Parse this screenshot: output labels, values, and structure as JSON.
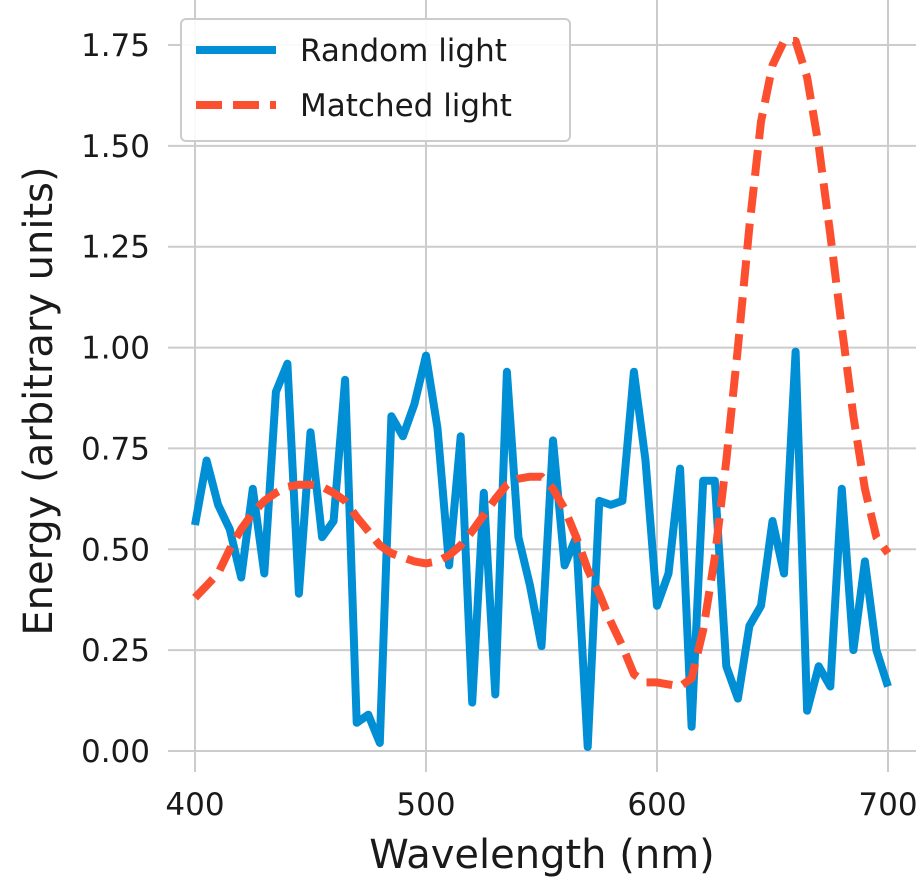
{
  "chart_data": {
    "type": "line",
    "title": "",
    "xlabel": "Wavelength (nm)",
    "ylabel": "Energy (arbitrary units)",
    "xlim": [
      400,
      700
    ],
    "ylim": [
      0,
      1.75
    ],
    "x_ticks": [
      400,
      500,
      600,
      700
    ],
    "y_ticks": [
      0,
      0.25,
      0.5,
      0.75,
      1.0,
      1.25,
      1.5,
      1.75
    ],
    "x_tick_labels": [
      "400",
      "500",
      "600",
      "700"
    ],
    "y_tick_labels": [
      "0.00",
      "0.25",
      "0.50",
      "0.75",
      "1.00",
      "1.25",
      "1.50",
      "1.75"
    ],
    "grid": true,
    "legend_position": "top-left",
    "series": [
      {
        "name": "Random light",
        "color": "#008fd5",
        "style": "solid",
        "x": [
          400,
          405,
          410,
          415,
          420,
          425,
          430,
          435,
          440,
          445,
          450,
          455,
          460,
          465,
          470,
          475,
          480,
          485,
          490,
          495,
          500,
          505,
          510,
          515,
          520,
          525,
          530,
          535,
          540,
          545,
          550,
          555,
          560,
          565,
          570,
          575,
          580,
          585,
          590,
          595,
          600,
          605,
          610,
          615,
          620,
          625,
          630,
          635,
          640,
          645,
          650,
          655,
          660,
          665,
          670,
          675,
          680,
          685,
          690,
          695,
          700
        ],
        "y": [
          0.56,
          0.72,
          0.61,
          0.55,
          0.43,
          0.65,
          0.44,
          0.89,
          0.96,
          0.39,
          0.79,
          0.53,
          0.57,
          0.92,
          0.07,
          0.09,
          0.02,
          0.83,
          0.78,
          0.86,
          0.98,
          0.8,
          0.46,
          0.78,
          0.12,
          0.64,
          0.14,
          0.94,
          0.53,
          0.41,
          0.26,
          0.77,
          0.46,
          0.53,
          0.01,
          0.62,
          0.61,
          0.62,
          0.94,
          0.72,
          0.36,
          0.44,
          0.7,
          0.06,
          0.67,
          0.67,
          0.21,
          0.13,
          0.31,
          0.36,
          0.57,
          0.44,
          0.99,
          0.1,
          0.21,
          0.16,
          0.65,
          0.25,
          0.47,
          0.25,
          0.16
        ]
      },
      {
        "name": "Matched light",
        "color": "#fc4f30",
        "style": "dashed",
        "x": [
          400,
          405,
          410,
          415,
          420,
          425,
          430,
          435,
          440,
          445,
          450,
          455,
          460,
          465,
          470,
          475,
          480,
          485,
          490,
          495,
          500,
          505,
          510,
          515,
          520,
          525,
          530,
          535,
          540,
          545,
          550,
          555,
          560,
          565,
          570,
          575,
          580,
          585,
          590,
          595,
          600,
          605,
          610,
          615,
          620,
          625,
          630,
          635,
          640,
          645,
          650,
          655,
          660,
          665,
          670,
          675,
          680,
          685,
          690,
          695,
          700
        ],
        "y": [
          0.38,
          0.41,
          0.44,
          0.5,
          0.55,
          0.59,
          0.62,
          0.64,
          0.655,
          0.66,
          0.66,
          0.655,
          0.64,
          0.62,
          0.58,
          0.545,
          0.51,
          0.49,
          0.48,
          0.47,
          0.465,
          0.47,
          0.485,
          0.51,
          0.545,
          0.585,
          0.625,
          0.66,
          0.675,
          0.68,
          0.68,
          0.65,
          0.6,
          0.53,
          0.45,
          0.39,
          0.32,
          0.26,
          0.19,
          0.17,
          0.17,
          0.165,
          0.16,
          0.18,
          0.3,
          0.48,
          0.72,
          1.0,
          1.3,
          1.56,
          1.7,
          1.76,
          1.76,
          1.67,
          1.5,
          1.28,
          1.05,
          0.83,
          0.65,
          0.53,
          0.49
        ]
      }
    ]
  }
}
